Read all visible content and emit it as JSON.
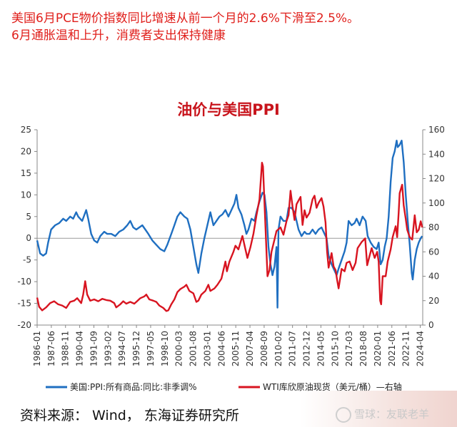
{
  "headline": {
    "line1": "美国6月PCE物价指数同比增速从前一个月的2.6%下滑至2.5%。",
    "line2": "6月通胀温和上升，消费者支出保持健康"
  },
  "source": "资料来源： Wind， 东海证券研究所",
  "watermark": "雪球：友联老羊",
  "chart_data": {
    "type": "line",
    "title": "油价与美国PPI",
    "left_axis": {
      "ylim": [
        -20,
        25
      ],
      "ticks": [
        -20,
        -15,
        -10,
        -5,
        0,
        5,
        10,
        15,
        20,
        25
      ]
    },
    "right_axis": {
      "ylim": [
        0,
        160
      ],
      "ticks": [
        0,
        20,
        40,
        60,
        80,
        100,
        120,
        140,
        160
      ]
    },
    "x_range": [
      1986.0,
      2024.5
    ],
    "x_ticks": [
      "1986-01",
      "1987-06",
      "1988-11",
      "1990-04",
      "1991-09",
      "1993-02",
      "1994-07",
      "1995-12",
      "1997-05",
      "1998-10",
      "2000-03",
      "2001-08",
      "2003-01",
      "2004-06",
      "2005-11",
      "2007-04",
      "2008-09",
      "2010-02",
      "2011-07",
      "2012-12",
      "2014-05",
      "2015-10",
      "2017-03",
      "2018-08",
      "2020-01",
      "2021-06",
      "2022-11",
      "2024-04"
    ],
    "grid": false,
    "legend": "bottom",
    "series": [
      {
        "name": "美国:PPI:所有商品:同比:非季调%",
        "axis": "left",
        "color": "#1f6fc1",
        "points": [
          [
            1986.0,
            -0.5
          ],
          [
            1986.3,
            -3.5
          ],
          [
            1986.6,
            -4.0
          ],
          [
            1986.9,
            -3.5
          ],
          [
            1987.1,
            -1.0
          ],
          [
            1987.4,
            2.0
          ],
          [
            1987.8,
            3.0
          ],
          [
            1988.2,
            3.5
          ],
          [
            1988.6,
            4.5
          ],
          [
            1988.9,
            4.0
          ],
          [
            1989.3,
            5.0
          ],
          [
            1989.6,
            4.5
          ],
          [
            1989.9,
            6.0
          ],
          [
            1990.1,
            5.0
          ],
          [
            1990.5,
            4.0
          ],
          [
            1990.9,
            6.5
          ],
          [
            1991.1,
            4.5
          ],
          [
            1991.4,
            1.0
          ],
          [
            1991.7,
            -0.5
          ],
          [
            1992.0,
            -1.0
          ],
          [
            1992.3,
            0.5
          ],
          [
            1992.7,
            1.5
          ],
          [
            1993.0,
            1.0
          ],
          [
            1993.4,
            1.0
          ],
          [
            1993.8,
            0.5
          ],
          [
            1994.2,
            1.5
          ],
          [
            1994.6,
            2.0
          ],
          [
            1995.0,
            3.0
          ],
          [
            1995.3,
            4.0
          ],
          [
            1995.6,
            2.5
          ],
          [
            1995.9,
            2.0
          ],
          [
            1996.2,
            2.5
          ],
          [
            1996.5,
            3.0
          ],
          [
            1996.8,
            2.0
          ],
          [
            1997.1,
            1.0
          ],
          [
            1997.5,
            -0.5
          ],
          [
            1997.9,
            -1.5
          ],
          [
            1998.3,
            -2.5
          ],
          [
            1998.7,
            -3.0
          ],
          [
            1999.0,
            -1.5
          ],
          [
            1999.4,
            1.0
          ],
          [
            1999.7,
            3.0
          ],
          [
            2000.0,
            5.0
          ],
          [
            2000.3,
            6.0
          ],
          [
            2000.7,
            5.0
          ],
          [
            2001.0,
            4.5
          ],
          [
            2001.3,
            2.0
          ],
          [
            2001.6,
            -2.0
          ],
          [
            2001.9,
            -6.0
          ],
          [
            2002.1,
            -8.0
          ],
          [
            2002.4,
            -3.5
          ],
          [
            2002.7,
            0.0
          ],
          [
            2003.0,
            3.0
          ],
          [
            2003.3,
            6.0
          ],
          [
            2003.6,
            3.0
          ],
          [
            2003.9,
            4.0
          ],
          [
            2004.2,
            5.0
          ],
          [
            2004.5,
            5.5
          ],
          [
            2004.8,
            6.5
          ],
          [
            2005.1,
            5.0
          ],
          [
            2005.4,
            6.5
          ],
          [
            2005.7,
            8.0
          ],
          [
            2005.9,
            10.0
          ],
          [
            2006.1,
            7.0
          ],
          [
            2006.4,
            5.5
          ],
          [
            2006.7,
            3.0
          ],
          [
            2006.9,
            1.0
          ],
          [
            2007.1,
            2.0
          ],
          [
            2007.4,
            4.5
          ],
          [
            2007.7,
            4.0
          ],
          [
            2007.9,
            6.0
          ],
          [
            2008.2,
            8.5
          ],
          [
            2008.5,
            10.5
          ],
          [
            2008.7,
            10.0
          ],
          [
            2008.9,
            6.0
          ],
          [
            2009.1,
            -2.0
          ],
          [
            2009.3,
            -6.0
          ],
          [
            2009.5,
            -8.5
          ],
          [
            2009.7,
            -6.5
          ],
          [
            2009.9,
            -2.0
          ],
          [
            2010.0,
            -16.0
          ],
          [
            2010.1,
            2.0
          ],
          [
            2010.3,
            5.0
          ],
          [
            2010.6,
            4.0
          ],
          [
            2010.9,
            4.0
          ],
          [
            2011.1,
            7.0
          ],
          [
            2011.4,
            7.0
          ],
          [
            2011.7,
            6.0
          ],
          [
            2011.9,
            4.0
          ],
          [
            2012.1,
            2.0
          ],
          [
            2012.4,
            0.5
          ],
          [
            2012.7,
            1.5
          ],
          [
            2012.9,
            1.0
          ],
          [
            2013.2,
            1.0
          ],
          [
            2013.5,
            2.0
          ],
          [
            2013.8,
            1.0
          ],
          [
            2014.1,
            2.0
          ],
          [
            2014.4,
            2.5
          ],
          [
            2014.7,
            1.0
          ],
          [
            2014.9,
            0.0
          ],
          [
            2015.1,
            -4.0
          ],
          [
            2015.4,
            -6.0
          ],
          [
            2015.7,
            -7.5
          ],
          [
            2015.9,
            -8.5
          ],
          [
            2016.1,
            -7.0
          ],
          [
            2016.4,
            -5.0
          ],
          [
            2016.7,
            -3.0
          ],
          [
            2016.9,
            -1.0
          ],
          [
            2017.1,
            4.0
          ],
          [
            2017.4,
            3.0
          ],
          [
            2017.7,
            3.5
          ],
          [
            2017.9,
            4.5
          ],
          [
            2018.2,
            3.0
          ],
          [
            2018.5,
            5.0
          ],
          [
            2018.8,
            4.0
          ],
          [
            2019.0,
            0.5
          ],
          [
            2019.3,
            -1.0
          ],
          [
            2019.6,
            -2.0
          ],
          [
            2019.9,
            -2.5
          ],
          [
            2020.1,
            -1.0
          ],
          [
            2020.3,
            -6.0
          ],
          [
            2020.5,
            -5.0
          ],
          [
            2020.7,
            -2.0
          ],
          [
            2020.9,
            0.0
          ],
          [
            2021.1,
            5.0
          ],
          [
            2021.3,
            13.0
          ],
          [
            2021.5,
            18.5
          ],
          [
            2021.7,
            20.0
          ],
          [
            2021.9,
            22.5
          ],
          [
            2022.0,
            21.0
          ],
          [
            2022.2,
            21.5
          ],
          [
            2022.4,
            22.5
          ],
          [
            2022.6,
            17.5
          ],
          [
            2022.8,
            10.0
          ],
          [
            2023.0,
            4.0
          ],
          [
            2023.2,
            -1.5
          ],
          [
            2023.4,
            -8.0
          ],
          [
            2023.5,
            -9.5
          ],
          [
            2023.7,
            -5.0
          ],
          [
            2023.9,
            -2.5
          ],
          [
            2024.1,
            -1.0
          ],
          [
            2024.3,
            0.0
          ],
          [
            2024.45,
            0.5
          ]
        ]
      },
      {
        "name": "WTI库欣原油现货（美元/桶）—右轴",
        "axis": "right",
        "color": "#d81420",
        "points": [
          [
            1986.0,
            22.5
          ],
          [
            1986.2,
            15.0
          ],
          [
            1986.5,
            12.0
          ],
          [
            1986.9,
            14.5
          ],
          [
            1987.3,
            18.0
          ],
          [
            1987.7,
            19.5
          ],
          [
            1988.1,
            17.0
          ],
          [
            1988.5,
            16.0
          ],
          [
            1988.9,
            14.0
          ],
          [
            1989.3,
            19.0
          ],
          [
            1989.7,
            20.0
          ],
          [
            1990.0,
            22.0
          ],
          [
            1990.4,
            18.0
          ],
          [
            1990.6,
            25.0
          ],
          [
            1990.8,
            36.0
          ],
          [
            1991.0,
            25.0
          ],
          [
            1991.3,
            20.0
          ],
          [
            1991.7,
            21.0
          ],
          [
            1992.1,
            19.5
          ],
          [
            1992.5,
            21.5
          ],
          [
            1992.9,
            20.5
          ],
          [
            1993.3,
            20.0
          ],
          [
            1993.7,
            18.0
          ],
          [
            1993.9,
            14.5
          ],
          [
            1994.3,
            17.0
          ],
          [
            1994.6,
            19.5
          ],
          [
            1994.9,
            17.5
          ],
          [
            1995.3,
            19.0
          ],
          [
            1995.7,
            17.5
          ],
          [
            1995.9,
            19.0
          ],
          [
            1996.3,
            22.0
          ],
          [
            1996.7,
            23.5
          ],
          [
            1996.9,
            25.0
          ],
          [
            1997.2,
            21.0
          ],
          [
            1997.6,
            20.0
          ],
          [
            1997.9,
            19.0
          ],
          [
            1998.2,
            16.0
          ],
          [
            1998.6,
            14.0
          ],
          [
            1998.9,
            11.5
          ],
          [
            1999.1,
            12.0
          ],
          [
            1999.4,
            17.0
          ],
          [
            1999.7,
            21.0
          ],
          [
            2000.0,
            27.0
          ],
          [
            2000.3,
            29.5
          ],
          [
            2000.7,
            31.5
          ],
          [
            2000.9,
            33.0
          ],
          [
            2001.2,
            28.0
          ],
          [
            2001.6,
            26.0
          ],
          [
            2001.9,
            19.0
          ],
          [
            2002.1,
            20.0
          ],
          [
            2002.4,
            25.0
          ],
          [
            2002.8,
            28.0
          ],
          [
            2003.1,
            33.0
          ],
          [
            2003.3,
            28.0
          ],
          [
            2003.7,
            30.0
          ],
          [
            2004.0,
            33.0
          ],
          [
            2004.4,
            38.0
          ],
          [
            2004.8,
            52.0
          ],
          [
            2004.95,
            44.0
          ],
          [
            2005.2,
            52.0
          ],
          [
            2005.6,
            60.0
          ],
          [
            2005.8,
            65.0
          ],
          [
            2006.1,
            62.0
          ],
          [
            2006.5,
            73.0
          ],
          [
            2006.8,
            62.0
          ],
          [
            2007.0,
            55.0
          ],
          [
            2007.3,
            64.0
          ],
          [
            2007.6,
            75.0
          ],
          [
            2007.9,
            90.0
          ],
          [
            2008.2,
            103.0
          ],
          [
            2008.45,
            133.0
          ],
          [
            2008.55,
            130.0
          ],
          [
            2008.7,
            100.0
          ],
          [
            2008.9,
            60.0
          ],
          [
            2009.0,
            40.0
          ],
          [
            2009.2,
            45.0
          ],
          [
            2009.4,
            60.0
          ],
          [
            2009.7,
            70.0
          ],
          [
            2009.9,
            77.0
          ],
          [
            2010.3,
            80.0
          ],
          [
            2010.6,
            74.0
          ],
          [
            2010.9,
            85.0
          ],
          [
            2011.1,
            90.0
          ],
          [
            2011.3,
            110.0
          ],
          [
            2011.5,
            97.0
          ],
          [
            2011.7,
            86.0
          ],
          [
            2011.9,
            99.0
          ],
          [
            2012.1,
            102.0
          ],
          [
            2012.3,
            105.0
          ],
          [
            2012.5,
            82.0
          ],
          [
            2012.7,
            94.0
          ],
          [
            2012.9,
            88.0
          ],
          [
            2013.2,
            92.0
          ],
          [
            2013.5,
            103.0
          ],
          [
            2013.7,
            106.0
          ],
          [
            2013.9,
            96.0
          ],
          [
            2014.1,
            100.0
          ],
          [
            2014.4,
            104.0
          ],
          [
            2014.6,
            97.0
          ],
          [
            2014.8,
            84.0
          ],
          [
            2014.95,
            60.0
          ],
          [
            2015.1,
            47.0
          ],
          [
            2015.4,
            59.0
          ],
          [
            2015.6,
            48.0
          ],
          [
            2015.8,
            45.0
          ],
          [
            2015.95,
            37.0
          ],
          [
            2016.1,
            30.0
          ],
          [
            2016.4,
            46.0
          ],
          [
            2016.7,
            44.0
          ],
          [
            2016.9,
            51.0
          ],
          [
            2017.2,
            52.0
          ],
          [
            2017.5,
            45.0
          ],
          [
            2017.8,
            51.0
          ],
          [
            2018.0,
            63.0
          ],
          [
            2018.4,
            68.0
          ],
          [
            2018.75,
            71.0
          ],
          [
            2018.95,
            49.0
          ],
          [
            2019.2,
            57.0
          ],
          [
            2019.4,
            63.0
          ],
          [
            2019.7,
            55.0
          ],
          [
            2019.95,
            60.0
          ],
          [
            2020.1,
            52.0
          ],
          [
            2020.25,
            20.0
          ],
          [
            2020.35,
            17.0
          ],
          [
            2020.5,
            40.0
          ],
          [
            2020.8,
            40.0
          ],
          [
            2021.0,
            52.0
          ],
          [
            2021.3,
            62.0
          ],
          [
            2021.5,
            72.0
          ],
          [
            2021.8,
            81.0
          ],
          [
            2021.95,
            72.0
          ],
          [
            2022.1,
            92.0
          ],
          [
            2022.2,
            108.0
          ],
          [
            2022.45,
            115.0
          ],
          [
            2022.6,
            98.0
          ],
          [
            2022.8,
            87.0
          ],
          [
            2022.95,
            78.0
          ],
          [
            2023.2,
            72.0
          ],
          [
            2023.45,
            70.0
          ],
          [
            2023.7,
            90.0
          ],
          [
            2023.9,
            76.0
          ],
          [
            2024.1,
            78.0
          ],
          [
            2024.3,
            85.0
          ],
          [
            2024.45,
            80.0
          ]
        ]
      }
    ]
  }
}
